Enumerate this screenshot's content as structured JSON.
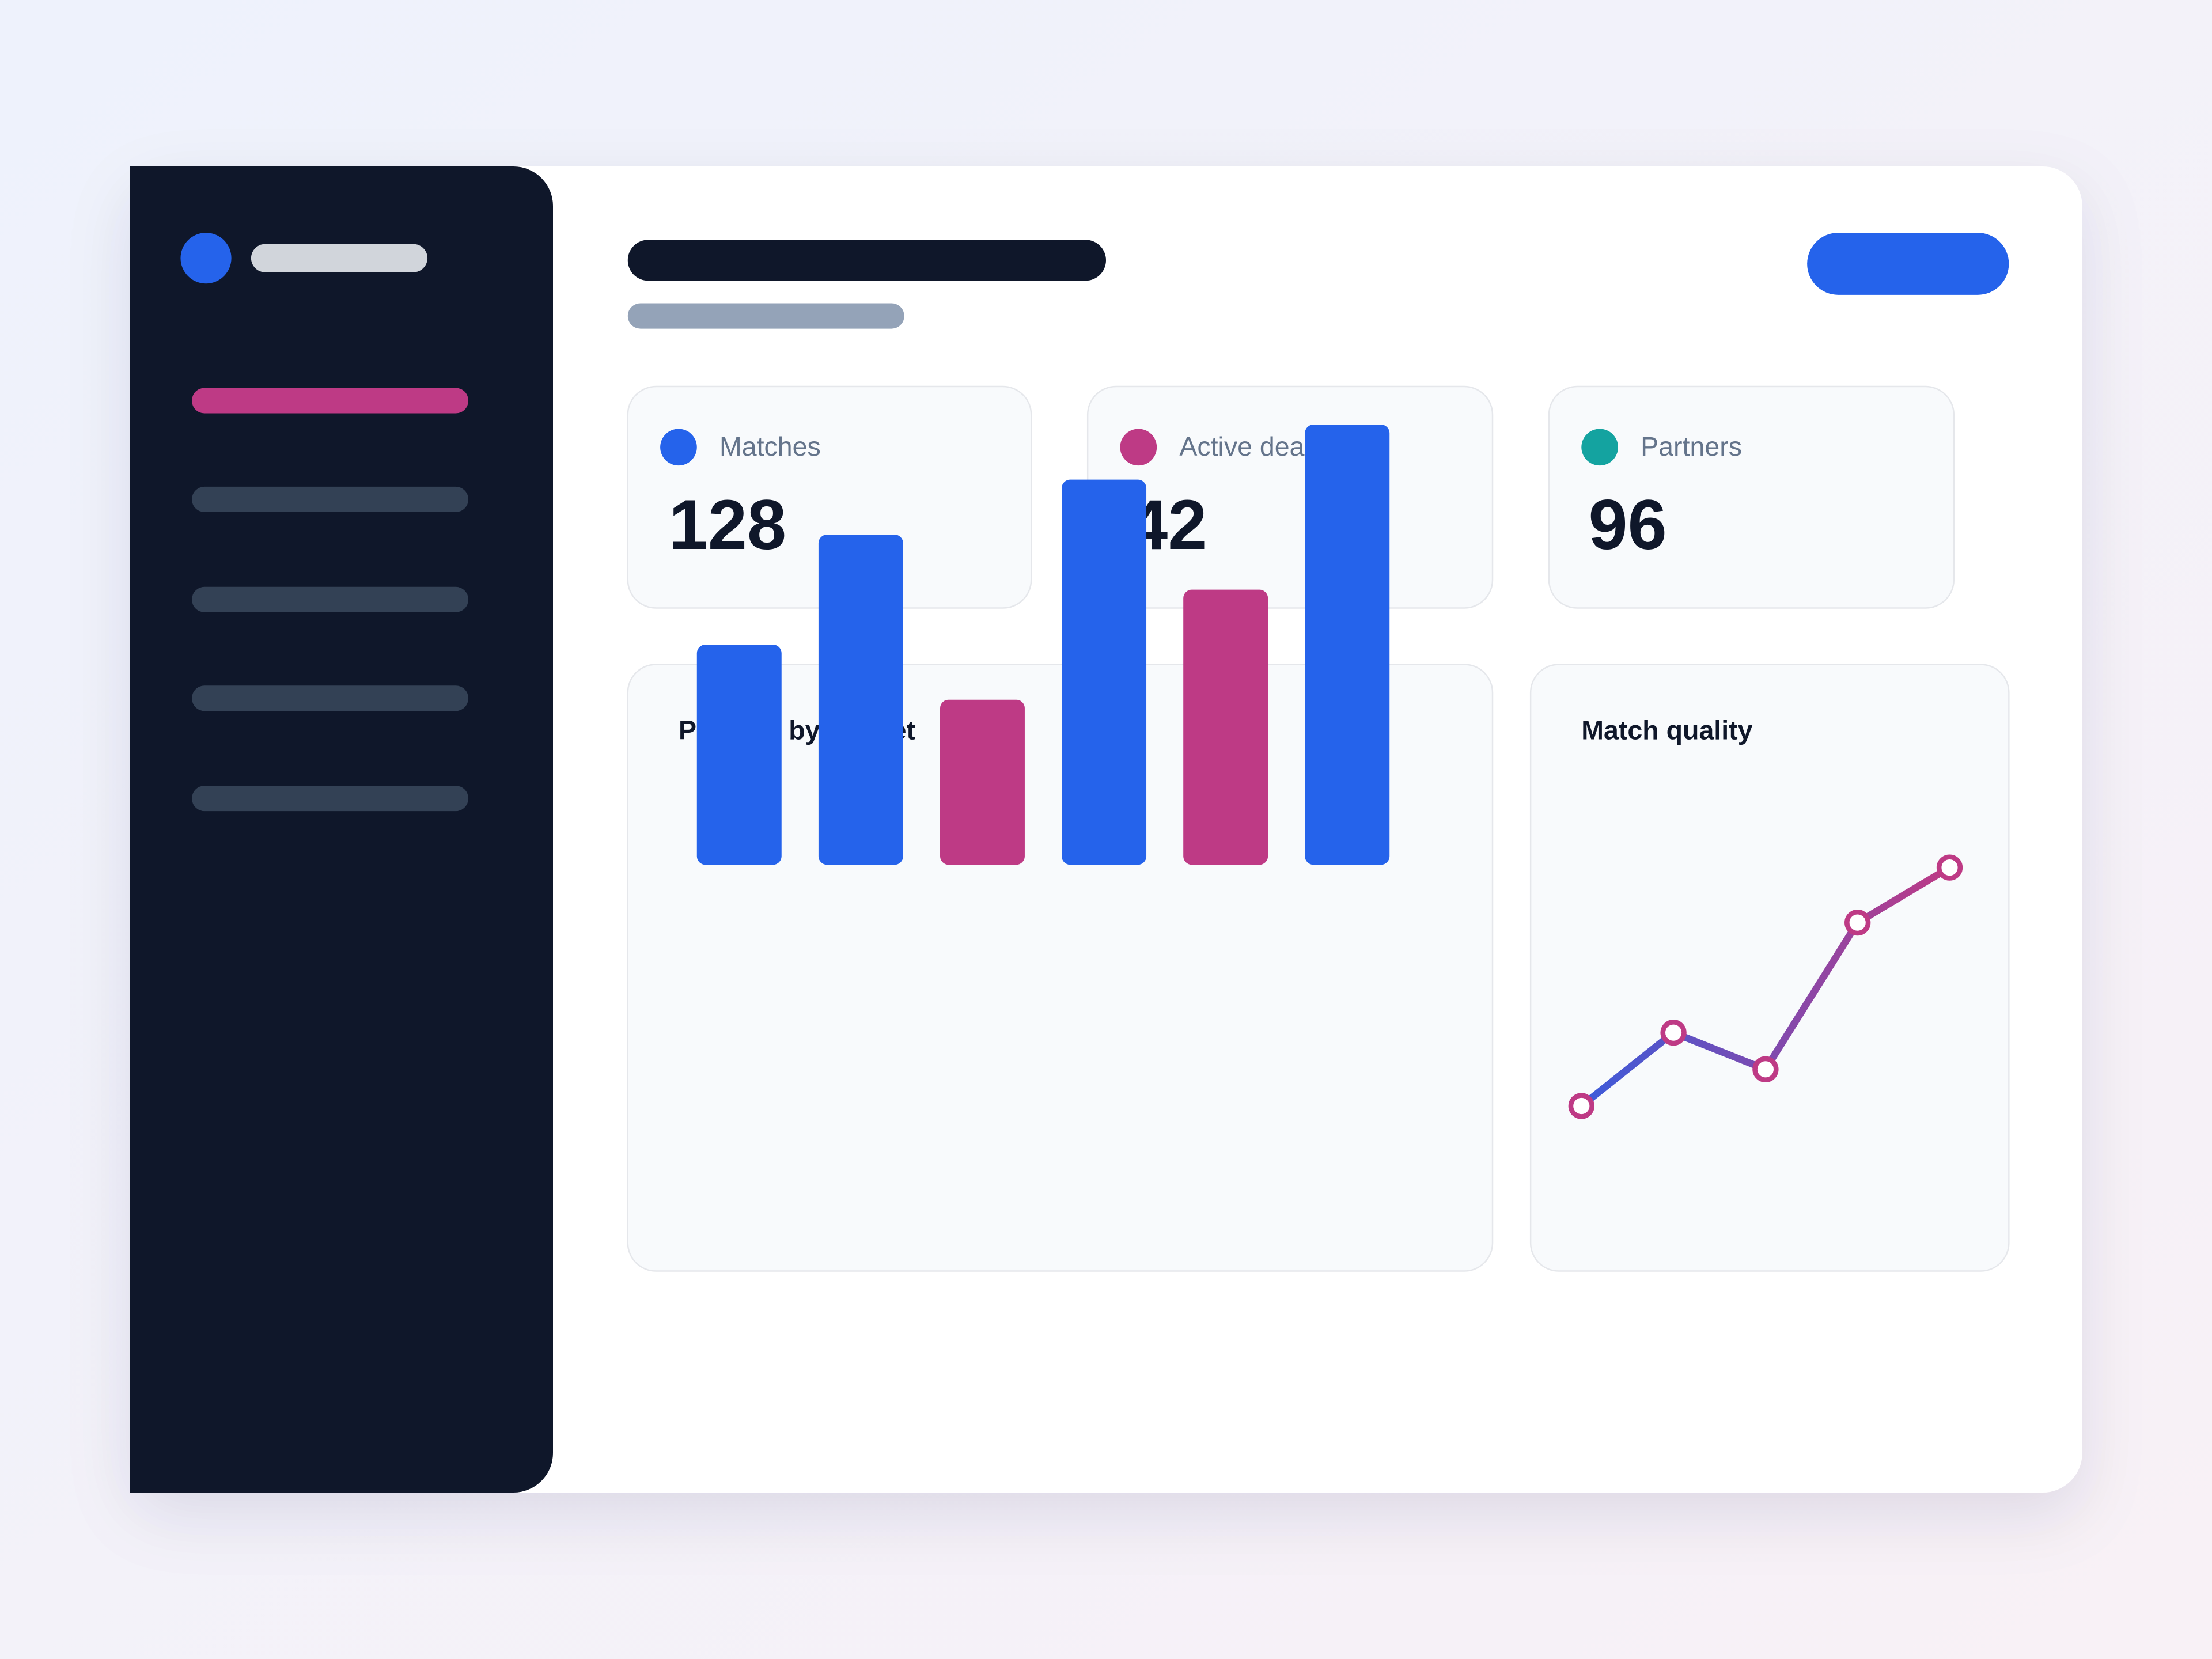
{
  "stats": [
    {
      "label": "Matches",
      "value": 128,
      "color": "#2563eb"
    },
    {
      "label": "Active deals",
      "value": 42,
      "color": "#be3a85"
    },
    {
      "label": "Partners",
      "value": 96,
      "color": "#14a3a0"
    }
  ],
  "chart_data": [
    {
      "type": "bar",
      "title": "Pipeline by market",
      "values": [
        40,
        60,
        30,
        70,
        50,
        80
      ],
      "colors": [
        "#2563eb",
        "#2563eb",
        "#be3a85",
        "#2563eb",
        "#be3a85",
        "#2563eb"
      ]
    },
    {
      "type": "line",
      "title": "Match quality",
      "values": [
        20,
        40,
        30,
        70,
        85
      ],
      "color": "#be3a85"
    }
  ]
}
